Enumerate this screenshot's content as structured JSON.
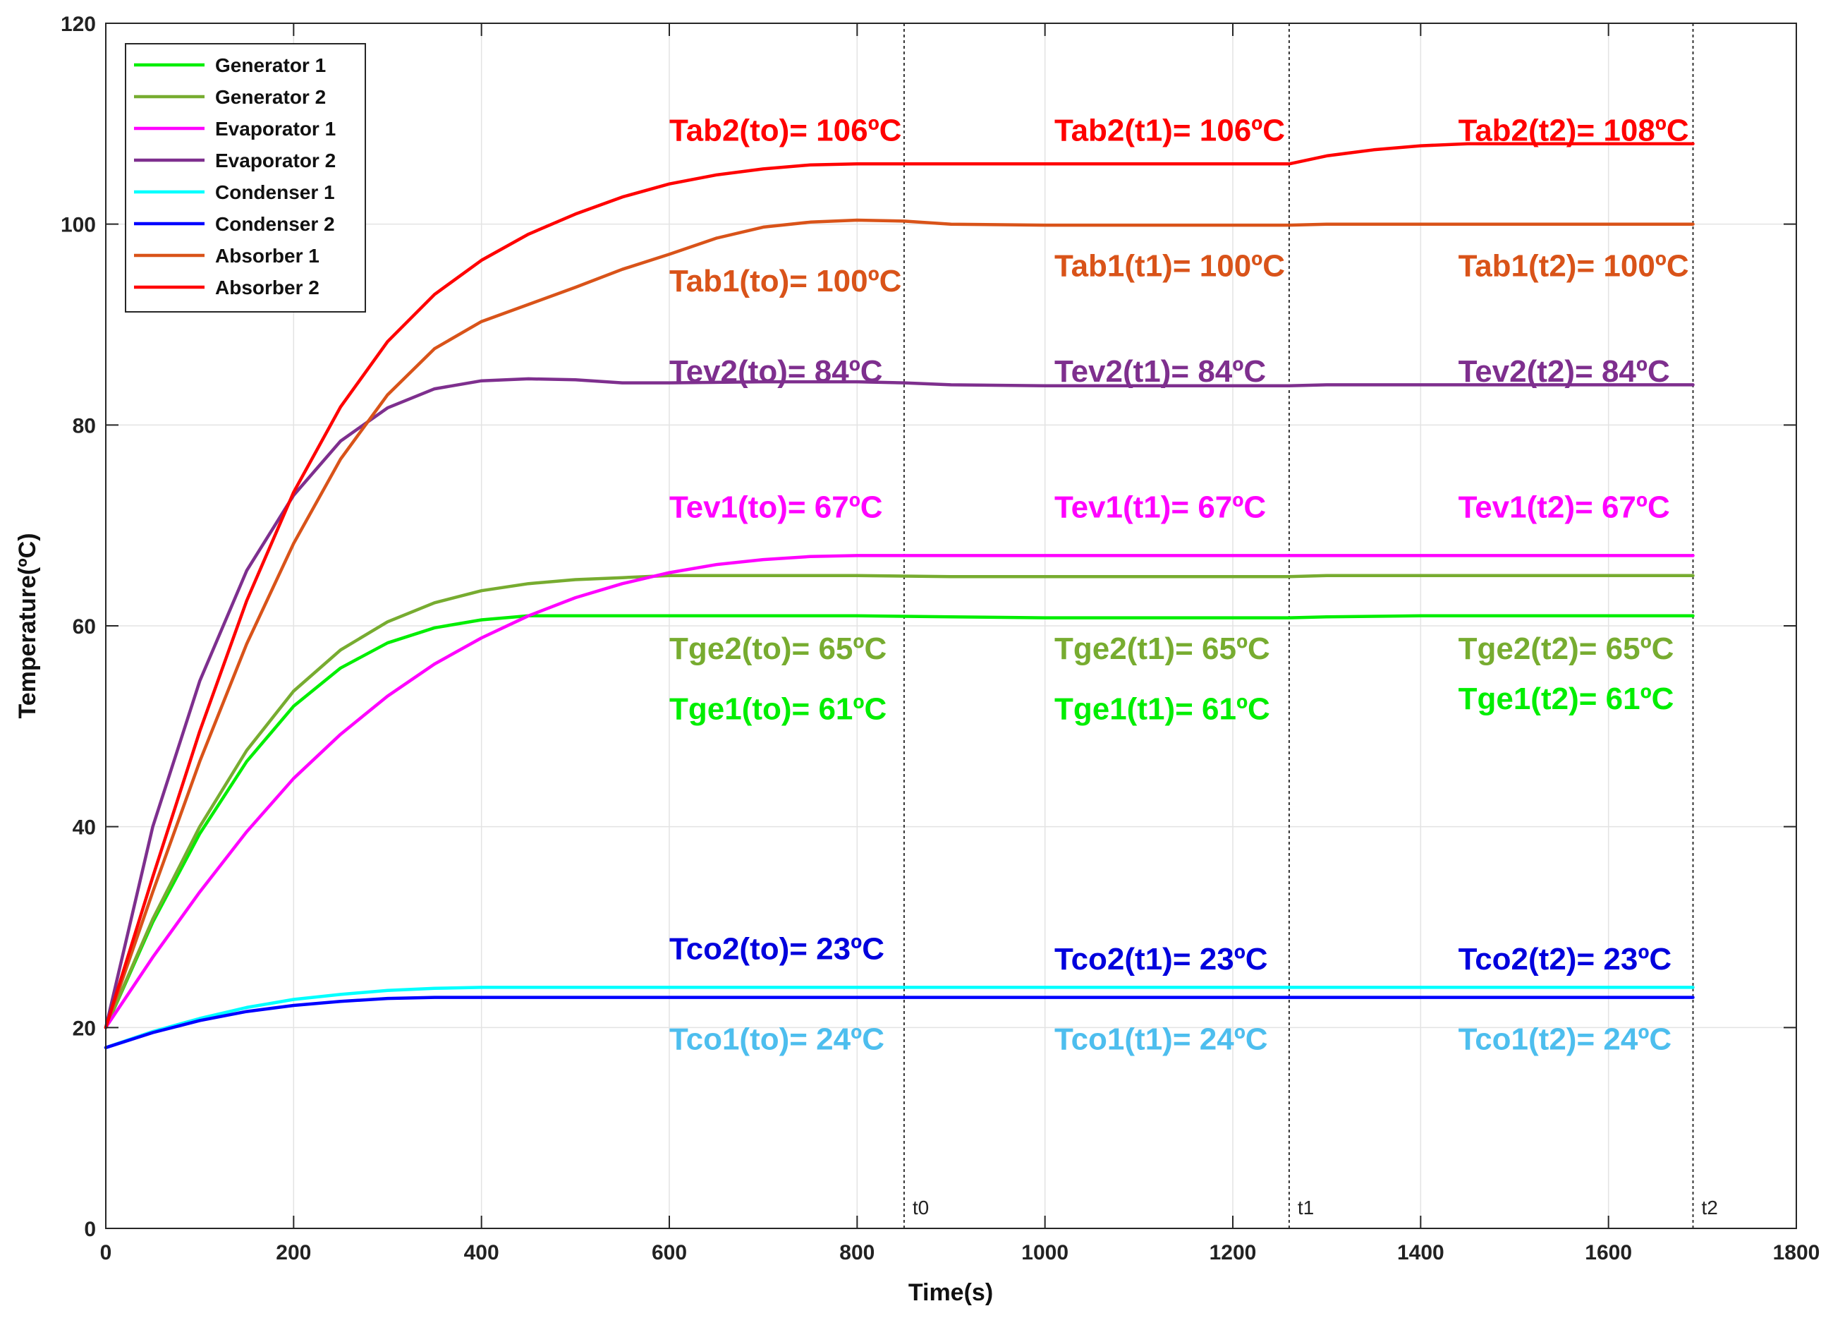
{
  "chart_data": {
    "type": "line",
    "xlabel": "Time(s)",
    "ylabel": "Temperature(ºC)",
    "xlim": [
      0,
      1800
    ],
    "ylim": [
      0,
      120
    ],
    "xticks": [
      "0",
      "200",
      "400",
      "600",
      "800",
      "1000",
      "1200",
      "1400",
      "1600",
      "1800"
    ],
    "yticks": [
      "0",
      "20",
      "40",
      "60",
      "80",
      "100",
      "120"
    ],
    "grid": true,
    "legend_position": "top-left",
    "series": [
      {
        "name": "Generator 1",
        "color": "#00ee00",
        "x": [
          0,
          50,
          100,
          150,
          200,
          250,
          300,
          350,
          400,
          450,
          500,
          600,
          700,
          800,
          900,
          1000,
          1100,
          1200,
          1260,
          1300,
          1400,
          1500,
          1600,
          1690
        ],
        "y": [
          20,
          30.5,
          39.3,
          46.5,
          52,
          55.8,
          58.3,
          59.8,
          60.6,
          61,
          61,
          61,
          61,
          61,
          60.9,
          60.8,
          60.8,
          60.8,
          60.8,
          60.9,
          61,
          61,
          61,
          61
        ]
      },
      {
        "name": "Generator 2",
        "color": "#77ac30",
        "x": [
          0,
          50,
          100,
          150,
          200,
          250,
          300,
          350,
          400,
          450,
          500,
          550,
          600,
          700,
          800,
          900,
          1000,
          1100,
          1200,
          1260,
          1300,
          1400,
          1500,
          1600,
          1690
        ],
        "y": [
          20,
          30.8,
          40,
          47.6,
          53.5,
          57.6,
          60.4,
          62.3,
          63.5,
          64.2,
          64.6,
          64.8,
          65,
          65,
          65,
          64.9,
          64.9,
          64.9,
          64.9,
          64.9,
          65,
          65,
          65,
          65,
          65
        ]
      },
      {
        "name": "Evaporator 1",
        "color": "#ff00ff",
        "x": [
          0,
          50,
          100,
          150,
          200,
          250,
          300,
          350,
          400,
          450,
          500,
          550,
          600,
          650,
          700,
          750,
          800,
          900,
          1000,
          1100,
          1200,
          1260,
          1300,
          1400,
          1500,
          1600,
          1690
        ],
        "y": [
          20,
          27,
          33.5,
          39.5,
          44.8,
          49.2,
          53,
          56.2,
          58.8,
          61,
          62.8,
          64.2,
          65.3,
          66.1,
          66.6,
          66.9,
          67,
          67,
          67,
          67,
          67,
          67,
          67,
          67,
          67,
          67,
          67
        ]
      },
      {
        "name": "Evaporator 2",
        "color": "#7e2f8e",
        "x": [
          0,
          50,
          100,
          150,
          200,
          250,
          300,
          350,
          400,
          450,
          500,
          550,
          600,
          700,
          800,
          850,
          900,
          1000,
          1100,
          1200,
          1260,
          1300,
          1400,
          1500,
          1600,
          1690
        ],
        "y": [
          20,
          40,
          54.5,
          65.5,
          73,
          78.4,
          81.7,
          83.6,
          84.4,
          84.6,
          84.5,
          84.2,
          84.2,
          84.3,
          84.3,
          84.2,
          84,
          83.9,
          83.9,
          83.9,
          83.9,
          84,
          84,
          84,
          84,
          84
        ]
      },
      {
        "name": "Condenser 1",
        "color": "#00ffff",
        "x": [
          0,
          50,
          100,
          150,
          200,
          250,
          300,
          350,
          400,
          500,
          600,
          700,
          800,
          900,
          1000,
          1100,
          1200,
          1260,
          1300,
          1400,
          1500,
          1600,
          1690
        ],
        "y": [
          18,
          19.6,
          20.9,
          22,
          22.8,
          23.3,
          23.7,
          23.9,
          24,
          24,
          24,
          24,
          24,
          24,
          24,
          24,
          24,
          24,
          24,
          24,
          24,
          24,
          24
        ]
      },
      {
        "name": "Condenser 2",
        "color": "#0000ff",
        "x": [
          0,
          50,
          100,
          150,
          200,
          250,
          300,
          350,
          400,
          500,
          600,
          700,
          800,
          900,
          1000,
          1100,
          1200,
          1260,
          1300,
          1400,
          1500,
          1600,
          1690
        ],
        "y": [
          18,
          19.5,
          20.7,
          21.6,
          22.2,
          22.6,
          22.9,
          23,
          23,
          23,
          23,
          23,
          23,
          23,
          23,
          23,
          23,
          23,
          23,
          23,
          23,
          23,
          23
        ]
      },
      {
        "name": "Absorber 1",
        "color": "#d95319",
        "x": [
          0,
          50,
          100,
          150,
          200,
          250,
          300,
          350,
          400,
          450,
          500,
          550,
          600,
          650,
          700,
          750,
          800,
          850,
          900,
          1000,
          1100,
          1200,
          1260,
          1300,
          1400,
          1500,
          1600,
          1690
        ],
        "y": [
          20,
          33.5,
          46.5,
          58.2,
          68.2,
          76.6,
          83,
          87.6,
          90.3,
          92,
          93.7,
          95.5,
          97,
          98.6,
          99.7,
          100.2,
          100.4,
          100.3,
          100,
          99.9,
          99.9,
          99.9,
          99.9,
          100,
          100,
          100,
          100,
          100
        ]
      },
      {
        "name": "Absorber 2",
        "color": "#ff0000",
        "x": [
          0,
          50,
          100,
          150,
          200,
          250,
          300,
          350,
          400,
          450,
          500,
          550,
          600,
          650,
          700,
          750,
          800,
          850,
          900,
          1000,
          1100,
          1200,
          1260,
          1300,
          1350,
          1400,
          1450,
          1500,
          1600,
          1690
        ],
        "y": [
          20,
          35,
          49.5,
          62.5,
          73.3,
          81.8,
          88.3,
          93,
          96.4,
          99,
          101,
          102.7,
          104,
          104.9,
          105.5,
          105.9,
          106,
          106,
          106,
          106,
          106,
          106,
          106,
          106.8,
          107.4,
          107.8,
          108,
          108,
          108,
          108
        ]
      }
    ],
    "vlines": [
      {
        "x": 850,
        "label": "t0"
      },
      {
        "x": 1260,
        "label": "t1"
      },
      {
        "x": 1690,
        "label": "t2"
      }
    ],
    "annotations": [
      {
        "text": "Tab2(to)= 106ºC",
        "x": 600,
        "y": 108.3,
        "color": "#ff0000",
        "size": 44
      },
      {
        "text": "Tab2(t1)= 106ºC",
        "x": 1010,
        "y": 108.3,
        "color": "#ff0000",
        "size": 44
      },
      {
        "text": "Tab2(t2)= 108ºC",
        "x": 1440,
        "y": 108.3,
        "color": "#ff0000",
        "size": 44
      },
      {
        "text": "Tab1(to)= 100ºC",
        "x": 600,
        "y": 93.3,
        "color": "#d95319",
        "size": 44
      },
      {
        "text": "Tab1(t1)= 100ºC",
        "x": 1010,
        "y": 94.8,
        "color": "#d95319",
        "size": 44
      },
      {
        "text": "Tab1(t2)= 100ºC",
        "x": 1440,
        "y": 94.8,
        "color": "#d95319",
        "size": 44
      },
      {
        "text": "Tev2(to)= 84ºC",
        "x": 600,
        "y": 84.3,
        "color": "#7e2f8e",
        "size": 44
      },
      {
        "text": "Tev2(t1)= 84ºC",
        "x": 1010,
        "y": 84.3,
        "color": "#7e2f8e",
        "size": 44
      },
      {
        "text": "Tev2(t2)= 84ºC",
        "x": 1440,
        "y": 84.3,
        "color": "#7e2f8e",
        "size": 44
      },
      {
        "text": "Tev1(to)= 67ºC",
        "x": 600,
        "y": 70.8,
        "color": "#ff00ff",
        "size": 38
      },
      {
        "text": "Tev1(t1)= 67ºC",
        "x": 1010,
        "y": 70.8,
        "color": "#ff00ff",
        "size": 44
      },
      {
        "text": "Tev1(t2)= 67ºC",
        "x": 1440,
        "y": 70.8,
        "color": "#ff00ff",
        "size": 44
      },
      {
        "text": "Tge2(to)= 65ºC",
        "x": 600,
        "y": 56.7,
        "color": "#77ac30",
        "size": 44
      },
      {
        "text": "Tge2(t1)= 65ºC",
        "x": 1010,
        "y": 56.7,
        "color": "#77ac30",
        "size": 44
      },
      {
        "text": "Tge2(t2)= 65ºC",
        "x": 1440,
        "y": 56.7,
        "color": "#77ac30",
        "size": 44
      },
      {
        "text": "Tge1(to)= 61ºC",
        "x": 600,
        "y": 50.7,
        "color": "#00ee00",
        "size": 44
      },
      {
        "text": "Tge1(t1)= 61ºC",
        "x": 1010,
        "y": 50.7,
        "color": "#00ee00",
        "size": 44
      },
      {
        "text": "Tge1(t2)= 61ºC",
        "x": 1440,
        "y": 51.7,
        "color": "#00ee00",
        "size": 44
      },
      {
        "text": "Tco2(to)= 23ºC",
        "x": 600,
        "y": 26.8,
        "color": "#0000dd",
        "size": 44
      },
      {
        "text": "Tco2(t1)= 23ºC",
        "x": 1010,
        "y": 25.8,
        "color": "#0000dd",
        "size": 44
      },
      {
        "text": "Tco2(t2)= 23ºC",
        "x": 1440,
        "y": 25.8,
        "color": "#0000dd",
        "size": 44
      },
      {
        "text": "Tco1(to)= 24ºC",
        "x": 600,
        "y": 17.8,
        "color": "#4dbeee",
        "size": 44
      },
      {
        "text": "Tco1(t1)= 24ºC",
        "x": 1010,
        "y": 17.8,
        "color": "#4dbeee",
        "size": 44
      },
      {
        "text": "Tco1(t2)= 24ºC",
        "x": 1440,
        "y": 17.8,
        "color": "#4dbeee",
        "size": 44
      }
    ]
  }
}
